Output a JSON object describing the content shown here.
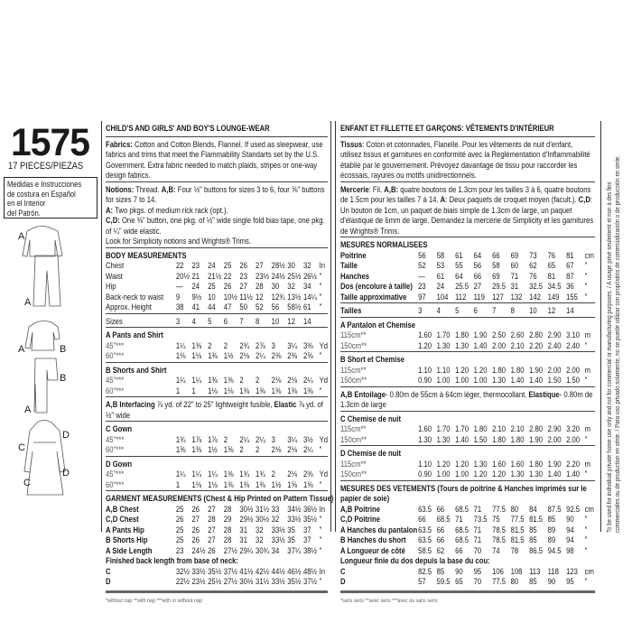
{
  "pattern_number": "1575",
  "pieces": "17 PIECES/PIEZAS",
  "spanish_note": [
    "Medidas e Instrucciones",
    "de costura en Español",
    "en el Interior",
    "del Patrón."
  ],
  "view_labels": {
    "a1": "A",
    "a2": "A",
    "a3": "A",
    "a4": "A",
    "b1": "B",
    "b2": "B",
    "c1": "C",
    "c2": "C",
    "d1": "D",
    "d2": "D"
  },
  "legal": [
    "To be used for individual private home use only and not for commercial or manufacturing purposes. / A usage privé seulement et non à des fins",
    "commerciales ou de production en série. / Para uso privado solamente, no se puede utilizar con propósitos de comercialización o de producción en serie."
  ],
  "english": [
    {
      "k": "title",
      "t": "CHILD'S AND GIRLS' AND BOY'S LOUNGE-WEAR"
    },
    {
      "k": "rule"
    },
    {
      "k": "para",
      "s": [
        {
          "b": 1,
          "t": "Fabrics:"
        },
        {
          "t": " Cotton and Cotton Blends, Flannel. If used as sleepwear, use fabrics and trims that meet the Flammability Standarts set by the U.S. Government. Extra fabric needed to match plaids, stripes or one-way design fabrics."
        }
      ]
    },
    {
      "k": "rule"
    },
    {
      "k": "para",
      "s": [
        {
          "b": 1,
          "t": "Notions:"
        },
        {
          "t": " Thread. "
        },
        {
          "b": 1,
          "t": "A,B:"
        },
        {
          "t": " Four ½\" buttons for sizes 3 to 6, four ⅝\" buttons for sizes 7 to 14."
        },
        {
          "br": 1
        },
        {
          "b": 1,
          "t": "A:"
        },
        {
          "t": " Two pkgs. of medium rick rack (opt.)."
        },
        {
          "br": 1
        },
        {
          "b": 1,
          "t": "C,D:"
        },
        {
          "t": " One ⅜\" button, one pkg. of ½\" wide single fold bias tape, one pkg. of ¼\" wide elastic."
        },
        {
          "br": 1
        },
        {
          "t": "Look for Simplicity notions and Wrights® Trims."
        }
      ]
    },
    {
      "k": "rule"
    },
    {
      "k": "heading",
      "t": "BODY MEASUREMENTS"
    },
    {
      "k": "row",
      "l": "Chest",
      "v": [
        "22",
        "23",
        "24",
        "25",
        "26",
        "27",
        "28½",
        "30",
        "32"
      ],
      "u": "In"
    },
    {
      "k": "row",
      "l": "Waist",
      "v": [
        "20½",
        "21",
        "21½",
        "22",
        "23",
        "23½",
        "24½",
        "25½",
        "26½"
      ],
      "u": "\""
    },
    {
      "k": "row",
      "l": "Hip",
      "v": [
        "—",
        "24",
        "25",
        "26",
        "27",
        "28",
        "30",
        "32",
        "34"
      ],
      "u": "\""
    },
    {
      "k": "row",
      "l": "Back-neck to waist",
      "v": [
        "9",
        "9½",
        "10",
        "10½",
        "11½",
        "12",
        "12¾",
        "13½",
        "14¼"
      ],
      "u": "\""
    },
    {
      "k": "row",
      "l": "Approx. Height",
      "v": [
        "38",
        "41",
        "44",
        "47",
        "50",
        "52",
        "56",
        "58½",
        "61"
      ],
      "u": "\""
    },
    {
      "k": "rule"
    },
    {
      "k": "row",
      "l": "Sizes",
      "v": [
        "3",
        "4",
        "5",
        "6",
        "7",
        "8",
        "10",
        "12",
        "14"
      ],
      "u": ""
    },
    {
      "k": "rule"
    },
    {
      "k": "heading",
      "t": "A Pants and Shirt"
    },
    {
      "k": "row",
      "light": 1,
      "l": "45\"***",
      "v": [
        "1¼",
        "1⅜",
        "2",
        "2",
        "2¾",
        "2⅞",
        "3",
        "3¼",
        "3⅜"
      ],
      "u": "Yd"
    },
    {
      "k": "row",
      "light": 1,
      "l": "60\"***",
      "v": [
        "1⅛",
        "1⅛",
        "1⅜",
        "1½",
        "2⅛",
        "2¼",
        "2⅜",
        "2⅜",
        "2⅝"
      ],
      "u": "\""
    },
    {
      "k": "rule"
    },
    {
      "k": "heading",
      "t": "B Shorts and Shirt"
    },
    {
      "k": "row",
      "light": 1,
      "l": "45\"***",
      "v": [
        "1¼",
        "1¼",
        "1⅜",
        "1⅜",
        "2",
        "2",
        "2⅛",
        "2⅛",
        "2¼"
      ],
      "u": "Yd"
    },
    {
      "k": "row",
      "light": 1,
      "l": "60\"***",
      "v": [
        "1",
        "1",
        "1⅛",
        "1⅛",
        "1⅜",
        "1⅜",
        "1⅜",
        "1⅜",
        "1⅜"
      ],
      "u": "\""
    },
    {
      "k": "rule"
    },
    {
      "k": "para",
      "s": [
        {
          "b": 1,
          "t": "A,B Interfacing"
        },
        {
          "t": " ⅞ yd. of 22\" to 25\" lightweight fusible, "
        },
        {
          "b": 1,
          "t": "Elastic"
        },
        {
          "t": " ⅞ yd. of ½\" wide"
        }
      ]
    },
    {
      "k": "rule"
    },
    {
      "k": "heading",
      "t": "C Gown"
    },
    {
      "k": "row",
      "light": 1,
      "l": "45\"***",
      "v": [
        "1¾",
        "1⅞",
        "1⅞",
        "2",
        "2¼",
        "2¼",
        "3",
        "3¼",
        "3½"
      ],
      "u": "Yd"
    },
    {
      "k": "row",
      "light": 1,
      "l": "60\"***",
      "v": [
        "1⅜",
        "1⅜",
        "1½",
        "1⅝",
        "2",
        "2",
        "2⅛",
        "2⅛",
        "2¼"
      ],
      "u": "\""
    },
    {
      "k": "rule"
    },
    {
      "k": "heading",
      "t": "D Gown"
    },
    {
      "k": "row",
      "light": 1,
      "l": "45\"***",
      "v": [
        "1¼",
        "1¼",
        "1¼",
        "1⅜",
        "1¾",
        "1¾",
        "2",
        "2⅛",
        "2⅜"
      ],
      "u": "Yd"
    },
    {
      "k": "row",
      "light": 1,
      "l": "60\"***",
      "v": [
        "1",
        "1⅛",
        "1⅛",
        "1⅜",
        "1⅜",
        "1⅜",
        "1½",
        "1⅝",
        "1⅝"
      ],
      "u": "\""
    },
    {
      "k": "rule"
    },
    {
      "k": "heading",
      "t": "GARMENT MEASUREMENTS (Chest & Hip Printed on Pattern Tissue)"
    },
    {
      "k": "row",
      "bold": 1,
      "l": "A,B Chest",
      "v": [
        "25",
        "26",
        "27",
        "28",
        "30½",
        "31½",
        "33",
        "34½",
        "36½"
      ],
      "u": "In"
    },
    {
      "k": "row",
      "bold": 1,
      "l": "C,D Chest",
      "v": [
        "26",
        "27",
        "28",
        "29",
        "29½",
        "30½",
        "32",
        "33½",
        "35½"
      ],
      "u": "\""
    },
    {
      "k": "row",
      "bold": 1,
      "l": "A Pants Hip",
      "v": [
        "25",
        "26",
        "27",
        "28",
        "31",
        "32",
        "33½",
        "35",
        "37"
      ],
      "u": "\""
    },
    {
      "k": "row",
      "bold": 1,
      "l": "B Shorts Hip",
      "v": [
        "25",
        "26",
        "27",
        "28",
        "31",
        "32",
        "33½",
        "35",
        "37"
      ],
      "u": "\""
    },
    {
      "k": "row",
      "bold": 1,
      "l": "A Side Length",
      "v": [
        "23",
        "24½",
        "26",
        "27½",
        "29¼",
        "30¾",
        "34",
        "37¼",
        "38½"
      ],
      "u": "\""
    },
    {
      "k": "heading",
      "t": "Finished back length from base of neck:"
    },
    {
      "k": "row",
      "bold": 1,
      "l": "C",
      "v": [
        "32½",
        "33½",
        "35½",
        "37½",
        "41½",
        "42½",
        "44½",
        "46½",
        "48½"
      ],
      "u": "In"
    },
    {
      "k": "row",
      "bold": 1,
      "l": "D",
      "v": [
        "22½",
        "23½",
        "25½",
        "27½",
        "30½",
        "31½",
        "33½",
        "35½",
        "37½"
      ],
      "u": "\""
    },
    {
      "k": "thick"
    },
    {
      "k": "note",
      "t": "*without nap    **with nap    ***with or without nap"
    }
  ],
  "french": [
    {
      "k": "title",
      "t": "ENFANT ET FILLETTE ET GARÇONS: VÊTEMENTS D'INTÉRIEUR"
    },
    {
      "k": "rule"
    },
    {
      "k": "para",
      "s": [
        {
          "b": 1,
          "t": "Tissus"
        },
        {
          "t": ": Coton et cotonnades, Flanelle. Pour les vêtements de nuit d'enfant, utilisez tissus et garnitures en conformité avec la Reglémentation d'Inflammabilité établie par le gouvernement. Prévoyez davantage de tissu pour raccorder les écossais, rayures ou motifs unidirectionnels."
        }
      ]
    },
    {
      "k": "rule"
    },
    {
      "k": "para",
      "s": [
        {
          "b": 1,
          "t": "Mercerie"
        },
        {
          "t": ": Fil. "
        },
        {
          "b": 1,
          "t": "A,B:"
        },
        {
          "t": " quatre boutons de 1.3cm pour les tailles 3 à 6, quatre boutons de 1.5cm pour les tailles 7 à 14. "
        },
        {
          "b": 1,
          "t": "A"
        },
        {
          "t": ": Deux paquets de croquet moyen (facult.). "
        },
        {
          "b": 1,
          "t": "C,D"
        },
        {
          "t": ": Un bouton de 1cm, un paquet de biais simple de 1.3cm de large, un paquet d'élastique de 6mm de large. Demandez la mercerie de Simplicity et les garnitures de Wrights® Trims."
        }
      ]
    },
    {
      "k": "rule"
    },
    {
      "k": "heading",
      "t": "MESURES NORMALISEES"
    },
    {
      "k": "row",
      "bold": 1,
      "l": "Poitrine",
      "v": [
        "56",
        "58",
        "61",
        "64",
        "66",
        "69",
        "73",
        "76",
        "81"
      ],
      "u": "cm"
    },
    {
      "k": "row",
      "bold": 1,
      "l": "Taille",
      "v": [
        "52",
        "53",
        "55",
        "56",
        "58",
        "60",
        "62",
        "65",
        "67"
      ],
      "u": "\""
    },
    {
      "k": "row",
      "bold": 1,
      "l": "Hanches",
      "v": [
        "—",
        "61",
        "64",
        "66",
        "69",
        "71",
        "76",
        "81",
        "87"
      ],
      "u": "\""
    },
    {
      "k": "row",
      "bold": 1,
      "l": "Dos (encolure à taille)",
      "v": [
        "23",
        "24",
        "25.5",
        "27",
        "29.5",
        "31",
        "32.5",
        "34.5",
        "36"
      ],
      "u": "\""
    },
    {
      "k": "row",
      "bold": 1,
      "l": "Taille approximative",
      "v": [
        "97",
        "104",
        "112",
        "119",
        "127",
        "132",
        "142",
        "149",
        "155"
      ],
      "u": "\""
    },
    {
      "k": "rule"
    },
    {
      "k": "row",
      "bold": 1,
      "l": "Tailles",
      "v": [
        "3",
        "4",
        "5",
        "6",
        "7",
        "8",
        "10",
        "12",
        "14"
      ],
      "u": ""
    },
    {
      "k": "rule"
    },
    {
      "k": "heading",
      "t": "A Pantalon et Chemise"
    },
    {
      "k": "row",
      "light": 1,
      "l": "115cm**",
      "v": [
        "1.60",
        "1.70",
        "1.80",
        "1.90",
        "2.50",
        "2.60",
        "2.80",
        "2.90",
        "3.10"
      ],
      "u": "m"
    },
    {
      "k": "row",
      "light": 1,
      "l": "150cm**",
      "v": [
        "1.20",
        "1.30",
        "1.30",
        "1.40",
        "2.00",
        "2.10",
        "2.20",
        "2.40",
        "2.40"
      ],
      "u": "\""
    },
    {
      "k": "rule"
    },
    {
      "k": "heading",
      "t": "B Short et Chemise"
    },
    {
      "k": "row",
      "light": 1,
      "l": "115cm**",
      "v": [
        "1.10",
        "1.10",
        "1.20",
        "1.20",
        "1.80",
        "1.80",
        "1.90",
        "2.00",
        "2.00"
      ],
      "u": "m"
    },
    {
      "k": "row",
      "light": 1,
      "l": "150cm**",
      "v": [
        "0.90",
        "1.00",
        "1.00",
        "1.00",
        "1.30",
        "1.40",
        "1.40",
        "1.50",
        "1.50"
      ],
      "u": "\""
    },
    {
      "k": "rule"
    },
    {
      "k": "para",
      "s": [
        {
          "b": 1,
          "t": "A,B Entoilage"
        },
        {
          "t": "- 0.80m de 55cm à 64cm léger, thermocollant. "
        },
        {
          "b": 1,
          "t": "Elastique"
        },
        {
          "t": "- 0.80m de 1.3cm de large"
        }
      ]
    },
    {
      "k": "rule"
    },
    {
      "k": "heading",
      "t": "C Chemise de nuit"
    },
    {
      "k": "row",
      "light": 1,
      "l": "115cm**",
      "v": [
        "1.60",
        "1.70",
        "1.70",
        "1.80",
        "2.10",
        "2.10",
        "2.80",
        "2.90",
        "3.20"
      ],
      "u": "m"
    },
    {
      "k": "row",
      "light": 1,
      "l": "150cm**",
      "v": [
        "1.30",
        "1.30",
        "1.40",
        "1.50",
        "1.80",
        "1.80",
        "1.90",
        "2.00",
        "2.00"
      ],
      "u": "\""
    },
    {
      "k": "rule"
    },
    {
      "k": "heading",
      "t": "D Chemise de nuit"
    },
    {
      "k": "row",
      "light": 1,
      "l": "115cm**",
      "v": [
        "1.10",
        "1.20",
        "1.20",
        "1.30",
        "1.60",
        "1.60",
        "1.80",
        "1.90",
        "2.20"
      ],
      "u": "m"
    },
    {
      "k": "row",
      "light": 1,
      "l": "150cm**",
      "v": [
        "0.90",
        "1.00",
        "1.00",
        "1.20",
        "1.20",
        "1.30",
        "1.30",
        "1.40",
        "1.40"
      ],
      "u": "\""
    },
    {
      "k": "rule"
    },
    {
      "k": "heading",
      "t": "MESURES DES VETEMENTS (Tours de poitrine & Hanches imprimés sur le papier de soie)"
    },
    {
      "k": "row",
      "bold": 1,
      "l": "A,B Poitrine",
      "v": [
        "63.5",
        "66",
        "68.5",
        "71",
        "77.5",
        "80",
        "84",
        "87.5",
        "92.5"
      ],
      "u": "cm"
    },
    {
      "k": "row",
      "bold": 1,
      "l": "C,D Poitrine",
      "v": [
        "66",
        "68.5",
        "71",
        "73.5",
        "75",
        "77.5",
        "81.5",
        "85",
        "90"
      ],
      "u": "\""
    },
    {
      "k": "row",
      "bold": 1,
      "l": "A Hanches du pantalon",
      "v": [
        "63.5",
        "66",
        "68.5",
        "71",
        "78.5",
        "81.5",
        "85",
        "89",
        "94"
      ],
      "u": "\""
    },
    {
      "k": "row",
      "bold": 1,
      "l": "B Hanches du short",
      "v": [
        "63.5",
        "66",
        "68.5",
        "71",
        "78.5",
        "81.5",
        "85",
        "89",
        "94"
      ],
      "u": "\""
    },
    {
      "k": "row",
      "bold": 1,
      "l": "A Longueur de côté",
      "v": [
        "58.5",
        "62",
        "66",
        "70",
        "74",
        "78",
        "86.5",
        "94.5",
        "98"
      ],
      "u": "\""
    },
    {
      "k": "heading",
      "t": "Longueur finie du dos depuis la base du cou:"
    },
    {
      "k": "row",
      "bold": 1,
      "l": "C",
      "v": [
        "82.5",
        "85",
        "90",
        "95",
        "106",
        "108",
        "113",
        "118",
        "123"
      ],
      "u": "cm"
    },
    {
      "k": "row",
      "bold": 1,
      "l": "D",
      "v": [
        "57",
        "59.5",
        "65",
        "70",
        "77.5",
        "80",
        "85",
        "90",
        "95"
      ],
      "u": "\""
    },
    {
      "k": "thick"
    },
    {
      "k": "note",
      "t": "*sans sens    **avec sens    ***avec ou sans sens"
    }
  ]
}
